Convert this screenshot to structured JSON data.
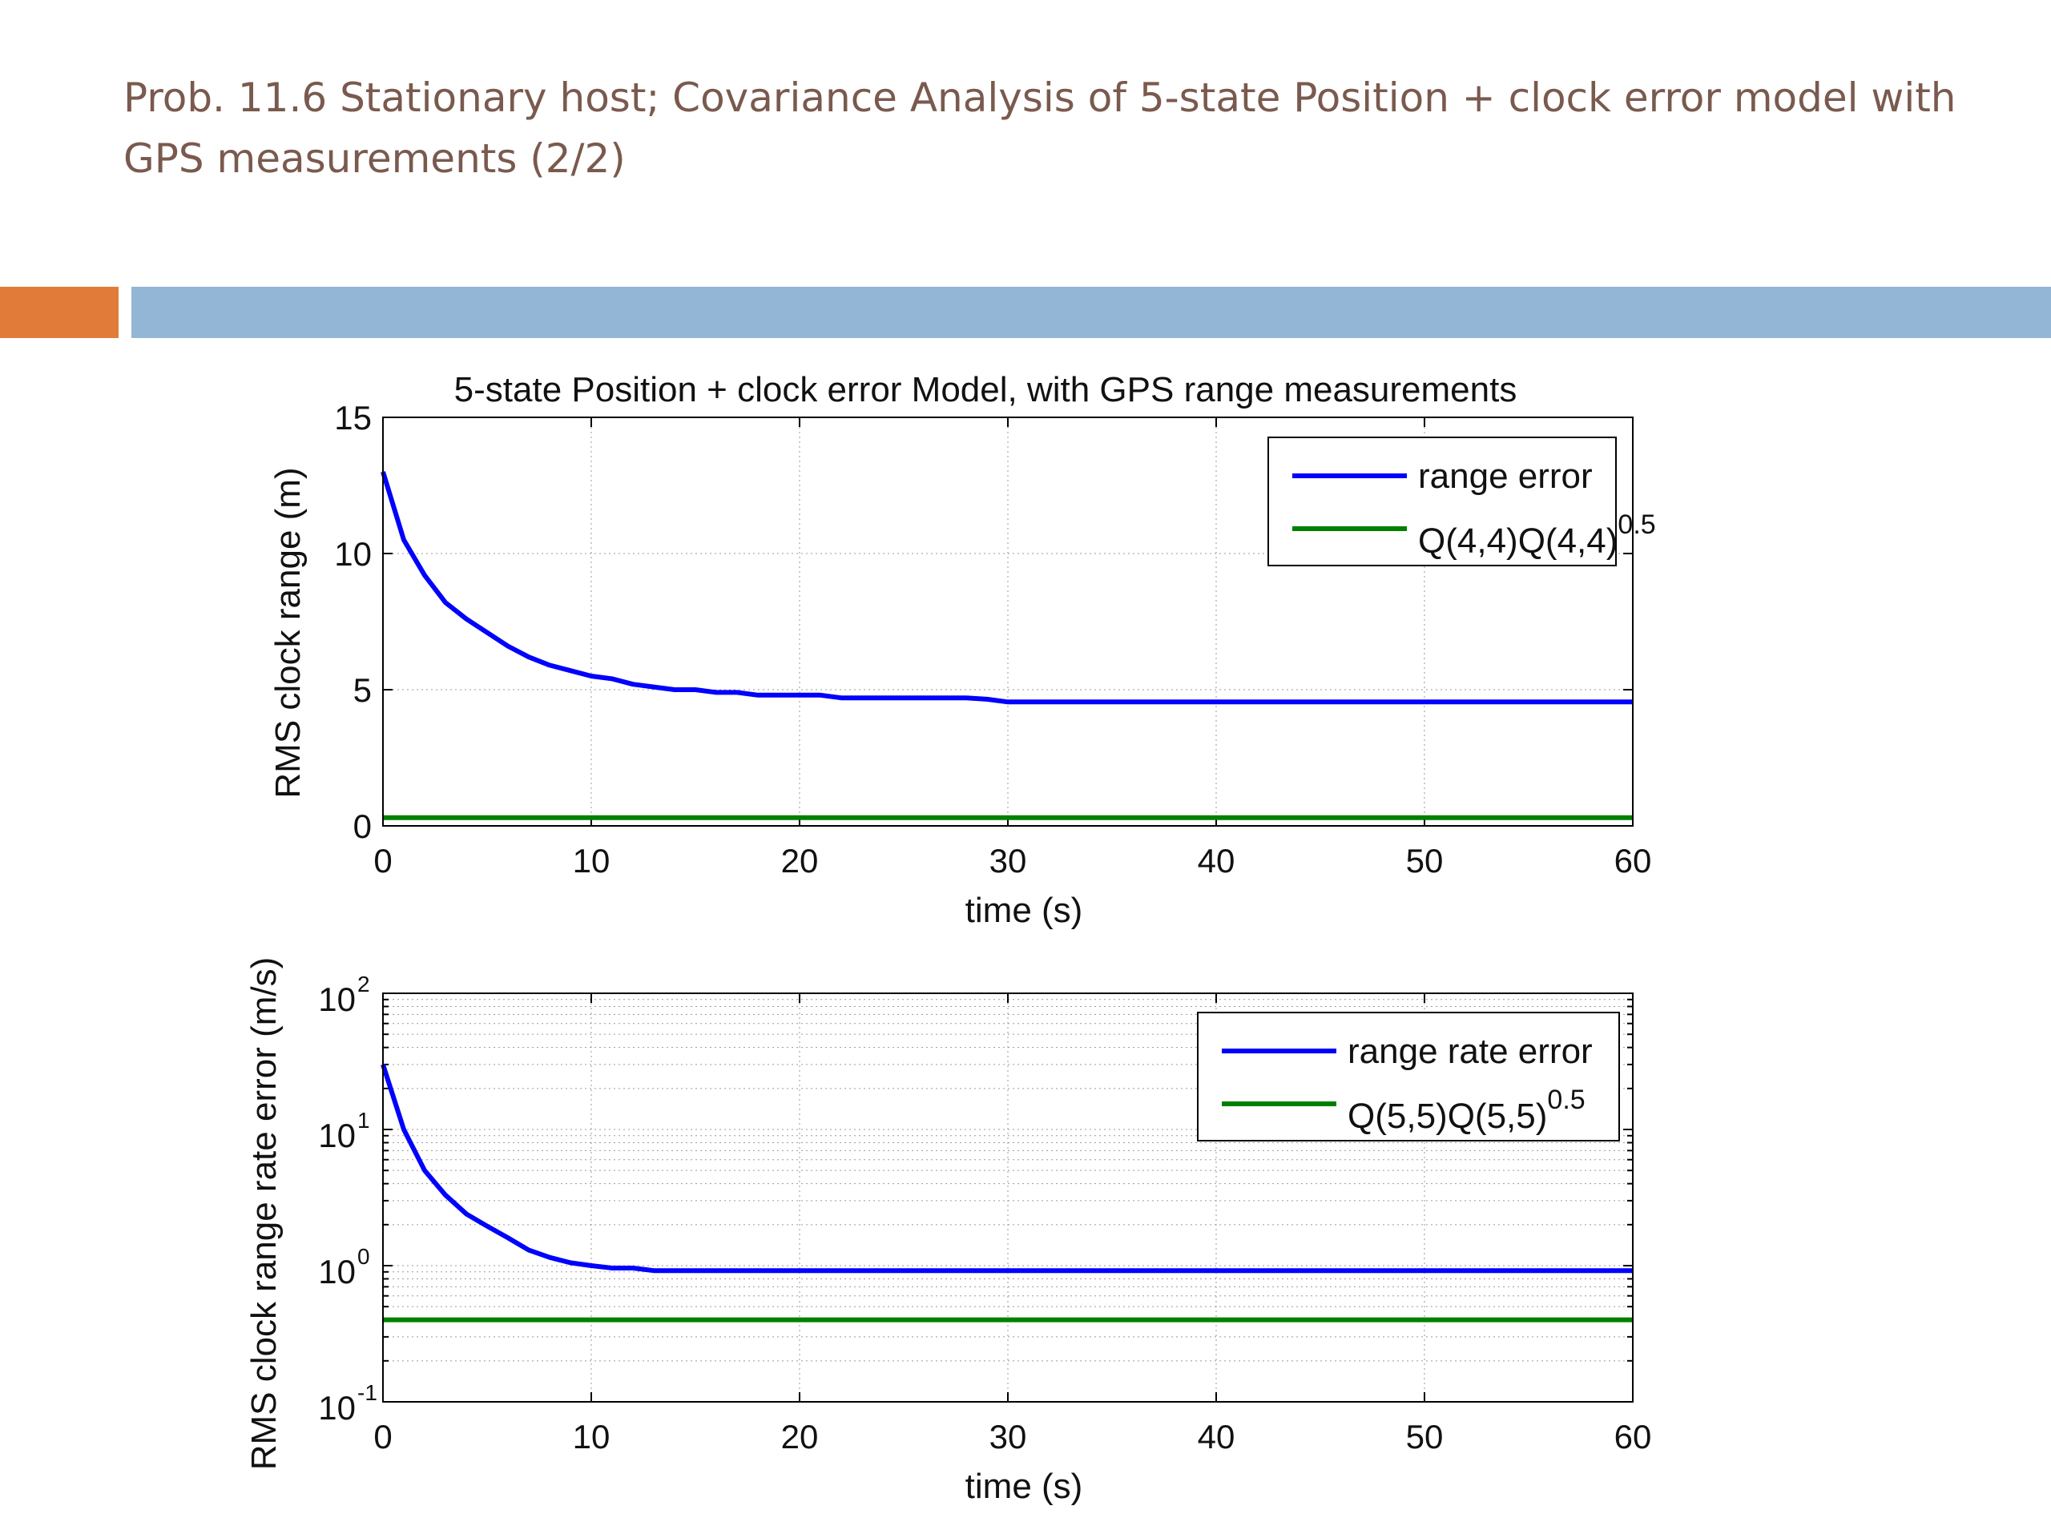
{
  "slide": {
    "title": "Prob. 11.6 Stationary host; Covariance Analysis of 5-state Position + clock error model with GPS measurements (2/2)",
    "accent_colors": {
      "orange": "#e07b39",
      "blue": "#93b5d6"
    }
  },
  "chart_data": [
    {
      "type": "line",
      "title": "5-state Position + clock error Model, with GPS range measurements",
      "xlabel": "time (s)",
      "ylabel": "RMS clock range (m)",
      "xlim": [
        0,
        60
      ],
      "ylim": [
        0,
        15
      ],
      "yscale": "linear",
      "grid": true,
      "legend_position": "top-right",
      "x_ticks": [
        0,
        10,
        20,
        30,
        40,
        50,
        60
      ],
      "x_tick_labels": [
        "0",
        "10",
        "20",
        "30",
        "40",
        "50",
        "60"
      ],
      "y_ticks": [
        0,
        5,
        10,
        15
      ],
      "y_tick_labels": [
        "0",
        "5",
        "10",
        "15"
      ],
      "series": [
        {
          "name": "range error",
          "color": "#0000ff",
          "x": [
            0,
            1,
            2,
            3,
            4,
            5,
            6,
            7,
            8,
            9,
            10,
            11,
            12,
            13,
            14,
            15,
            16,
            17,
            18,
            19,
            20,
            21,
            22,
            23,
            24,
            25,
            26,
            27,
            28,
            29,
            30,
            40,
            50,
            60
          ],
          "y": [
            13.0,
            10.5,
            9.2,
            8.2,
            7.6,
            7.1,
            6.6,
            6.2,
            5.9,
            5.7,
            5.5,
            5.4,
            5.2,
            5.1,
            5.0,
            5.0,
            4.9,
            4.9,
            4.8,
            4.8,
            4.8,
            4.8,
            4.7,
            4.7,
            4.7,
            4.7,
            4.7,
            4.7,
            4.7,
            4.65,
            4.55,
            4.55,
            4.55,
            4.55
          ]
        },
        {
          "name": "Q(4,4)",
          "name_superscript": "0.5",
          "color": "#008000",
          "x": [
            0,
            60
          ],
          "y": [
            0.3,
            0.3
          ]
        }
      ]
    },
    {
      "type": "line",
      "title": "",
      "xlabel": "time (s)",
      "ylabel": "RMS clock range rate error (m/s)",
      "xlim": [
        0,
        60
      ],
      "ylim": [
        0.1,
        100
      ],
      "yscale": "log",
      "grid": true,
      "legend_position": "top-right",
      "x_ticks": [
        0,
        10,
        20,
        30,
        40,
        50,
        60
      ],
      "x_tick_labels": [
        "0",
        "10",
        "20",
        "30",
        "40",
        "50",
        "60"
      ],
      "y_ticks": [
        0.1,
        1,
        10,
        100
      ],
      "y_tick_labels": [
        {
          "base": "10",
          "exp": "-1"
        },
        {
          "base": "10",
          "exp": "0"
        },
        {
          "base": "10",
          "exp": "1"
        },
        {
          "base": "10",
          "exp": "2"
        }
      ],
      "series": [
        {
          "name": "range rate error",
          "color": "#0000ff",
          "x": [
            0,
            1,
            2,
            3,
            4,
            5,
            6,
            7,
            8,
            9,
            10,
            11,
            12,
            13,
            14,
            20,
            30,
            40,
            50,
            60
          ],
          "y": [
            30,
            10,
            5,
            3.3,
            2.4,
            1.95,
            1.6,
            1.3,
            1.15,
            1.05,
            1.0,
            0.96,
            0.96,
            0.92,
            0.92,
            0.92,
            0.92,
            0.92,
            0.92,
            0.92
          ]
        },
        {
          "name": "Q(5,5)",
          "name_superscript": "0.5",
          "color": "#008000",
          "x": [
            0,
            60
          ],
          "y": [
            0.4,
            0.4
          ]
        }
      ]
    }
  ]
}
